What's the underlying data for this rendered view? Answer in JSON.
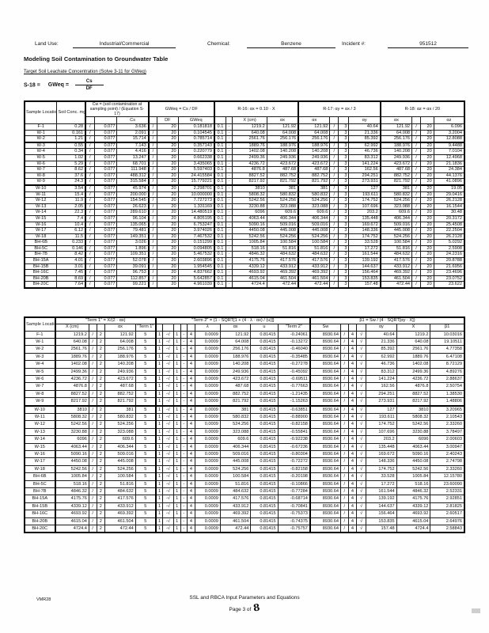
{
  "page": {
    "land_use_label": "Land Use:",
    "land_use_value": "Industrial/Commercial",
    "chemical_label": "Chemical:",
    "chemical_value": "Benzene",
    "incident_label": "Incident #:",
    "incident_value": "951512",
    "title": "Modeling Soil Contamination to Groundwater Table",
    "subtitle": "Target Soil Leachate Concentration (Solve 3-11 for GWeq)",
    "equation_label": "S-18 =",
    "equation_lhs": "GWeq =",
    "equation_numerator": "Cs",
    "equation_denominator": "DF",
    "footer_line1": "SSL and RBCA Input Parameters and Equations",
    "footer_page_prefix": "Page 3 of",
    "footer_page_number": "8",
    "footer_code": "VMR28"
  },
  "table1": {
    "col_sample": "Sample Location",
    "col_conc": "Soil Conc. mg/kg",
    "group_cw": "Cw = (soil contamination at sampling point) / (Equation S-17)",
    "sub_cs": "Cs",
    "group_gw": "GWeq = Cs / DF",
    "sub_df": "DF",
    "sub_gweq": "GWeq",
    "group_r16": "R-16:  αx = 0.10 · X",
    "sub_x": "X (cm)",
    "sub_ax": "αx",
    "group_r17": "R-17:  αy = αx / 3",
    "sub_ay": "αy",
    "group_r18": "R-18:  αz = αx / 20",
    "sub_az": "αz",
    "slash": "/",
    "const_k": "0.077",
    "const_df": "20",
    "const_01": "0.1",
    "const_dot": "·",
    "const_3": "3",
    "const_20": "20",
    "rows": [
      {
        "name": "F-1",
        "conc": "0.28",
        "cs": "3.636",
        "gw": "0.181818",
        "x": "1219.2",
        "ax": "121.92",
        "ay": "40.64",
        "az": "6.096"
      },
      {
        "name": "W-1",
        "conc": "0.161",
        "cs": "2.091",
        "gw": "0.104545",
        "x": "640.08",
        "ax": "64.008",
        "ay": "21.336",
        "az": "3.2004"
      },
      {
        "name": "W-2",
        "conc": "1.21",
        "cs": "15.714",
        "gw": "0.785714",
        "x": "2561.76",
        "ax": "256.176",
        "ay": "85.392",
        "az": "12.8088"
      },
      {
        "name": "W-3",
        "conc": "0.55",
        "cs": "7.143",
        "gw": "0.357143",
        "x": "1889.76",
        "ax": "188.976",
        "ay": "62.992",
        "az": "9.4488"
      },
      {
        "name": "W-4",
        "conc": "0.34",
        "cs": "4.416",
        "gw": "0.220779",
        "x": "1402.08",
        "ax": "140.208",
        "ay": "46.736",
        "az": "7.0104"
      },
      {
        "name": "W-5",
        "conc": "1.02",
        "cs": "13.247",
        "gw": "0.662338",
        "x": "2499.36",
        "ax": "249.936",
        "ay": "83.312",
        "az": "12.4968"
      },
      {
        "name": "W-6",
        "conc": "5.29",
        "cs": "68.701",
        "gw": "3.435065",
        "x": "4236.72",
        "ax": "423.672",
        "ay": "141.224",
        "az": "21.1836"
      },
      {
        "name": "W-7",
        "conc": "8.62",
        "cs": "111.948",
        "gw": "5.597403",
        "x": "4876.8",
        "ax": "487.68",
        "ay": "162.56",
        "az": "24.384"
      },
      {
        "name": "W-8",
        "conc": "37.6",
        "cs": "488.312",
        "gw": "24.415584",
        "x": "8827.52",
        "ax": "882.752",
        "ay": "294.251",
        "az": "44.1376"
      },
      {
        "name": "W-9",
        "conc": "24.3",
        "cs": "315.584",
        "gw": "15.779221",
        "x": "8217.92",
        "ax": "821.792",
        "ay": "273.931",
        "az": "41.0896"
      },
      {
        "name": "W-10",
        "conc": "3.54",
        "cs": "45.974",
        "gw": "2.298701",
        "x": "3810",
        "ax": "381",
        "ay": "127",
        "az": "19.05"
      },
      {
        "name": "W-11",
        "conc": "15.4",
        "cs": "200.000",
        "gw": "10.000000",
        "x": "5808.32",
        "ax": "580.832",
        "ay": "193.611",
        "az": "29.0416"
      },
      {
        "name": "W-12",
        "conc": "11.9",
        "cs": "154.545",
        "gw": "7.727273",
        "x": "5242.56",
        "ax": "524.256",
        "ay": "174.752",
        "az": "26.2128"
      },
      {
        "name": "W-13",
        "conc": "2.05",
        "cs": "26.623",
        "gw": "1.331169",
        "x": "3230.88",
        "ax": "323.088",
        "ay": "107.696",
        "az": "16.1544"
      },
      {
        "name": "W-14",
        "conc": "22.3",
        "cs": "289.610",
        "gw": "14.480519",
        "x": "6096",
        "ax": "609.6",
        "ay": "203.2",
        "az": "30.48"
      },
      {
        "name": "W-15",
        "conc": "7.4",
        "cs": "96.104",
        "gw": "4.805195",
        "x": "4063.44",
        "ax": "406.344",
        "ay": "135.448",
        "az": "20.3172"
      },
      {
        "name": "W-16",
        "conc": "10.4",
        "cs": "135.065",
        "gw": "6.753247",
        "x": "5090.16",
        "ax": "509.016",
        "ay": "169.672",
        "az": "25.4508"
      },
      {
        "name": "W-17",
        "conc": "6.12",
        "cs": "79.481",
        "gw": "3.974026",
        "x": "4450.08",
        "ax": "445.008",
        "ay": "148.336",
        "az": "22.2504"
      },
      {
        "name": "W-18",
        "conc": "11.5",
        "cs": "149.351",
        "gw": "7.467532",
        "x": "5242.56",
        "ax": "524.256",
        "ay": "174.752",
        "az": "26.2128"
      },
      {
        "name": "BH-6B",
        "conc": "0.233",
        "cs": "3.026",
        "gw": "0.151299",
        "x": "1005.84",
        "ax": "100.584",
        "ay": "33.528",
        "az": "5.0292"
      },
      {
        "name": "BH-5C",
        "conc": "0.146",
        "cs": "1.896",
        "gw": "0.094805",
        "x": "518.16",
        "ax": "51.816",
        "ay": "17.272",
        "az": "2.5908"
      },
      {
        "name": "BH-7B",
        "conc": "8.42",
        "cs": "109.351",
        "gw": "5.467532",
        "x": "4846.32",
        "ax": "484.632",
        "ay": "161.544",
        "az": "24.2316"
      },
      {
        "name": "BH-15A",
        "conc": "4.01",
        "cs": "52.078",
        "gw": "2.603896",
        "x": "4175.76",
        "ax": "417.576",
        "ay": "139.192",
        "az": "20.8788"
      },
      {
        "name": "BH-15B",
        "conc": "3.01",
        "cs": "39.091",
        "gw": "1.954545",
        "x": "4339.12",
        "ax": "433.912",
        "ay": "144.637",
        "az": "21.6956"
      },
      {
        "name": "BH-16C",
        "conc": "7.45",
        "cs": "96.753",
        "gw": "4.837662",
        "x": "4693.92",
        "ax": "469.392",
        "ay": "156.464",
        "az": "23.4696"
      },
      {
        "name": "BH-20B",
        "conc": "8.69",
        "cs": "112.857",
        "gw": "5.642857",
        "x": "4615.04",
        "ax": "461.504",
        "ay": "153.835",
        "az": "23.0752"
      },
      {
        "name": "BH-20C",
        "conc": "7.64",
        "cs": "99.221",
        "gw": "4.961039",
        "x": "4724.4",
        "ax": "472.44",
        "ay": "157.48",
        "az": "23.622"
      }
    ]
  },
  "table2": {
    "col_sample": "Sample Location",
    "group_t1": "\"Term 1\" = X/(2 · αx)",
    "sub_x": "X (cm)",
    "sub_ax": "αx",
    "sub_t1": "\"Term 1\"",
    "group_t2": "\"Term 2\" = {1 - SQRT[1 + (4 · λ · αx) / (u)]}",
    "sub_lambda": "λ",
    "sub_u": "u",
    "sub_t2": "\"Term 2\"",
    "group_b1": "β1 = Sw / (4 · SQRT[αy · X])",
    "sub_sw": "Sw",
    "sub_ay": "αy",
    "sub_x2": "X",
    "sub_b1": "β1",
    "slash": "/",
    "const_2": "2",
    "const_4": "4",
    "sqrt_sign": "√",
    "tokens": [
      "1",
      "-√",
      "1",
      "-",
      "4"
    ],
    "term1_value": "5",
    "lambda_value": "0.0009",
    "u_value": "0.81415",
    "sw_value": "8930.64",
    "rows": [
      {
        "name": "F-1",
        "x": "1219.2",
        "ax": "121.92",
        "term2": "-0.24061",
        "ay": "40.64",
        "b1": "10.03016"
      },
      {
        "name": "W-1",
        "x": "640.08",
        "ax": "64.008",
        "term2": "-0.13272",
        "ay": "21.336",
        "b1": "19.10511"
      },
      {
        "name": "W-2",
        "x": "2561.76",
        "ax": "256.176",
        "term2": "-0.46040",
        "ay": "85.392",
        "b1": "4.77358"
      },
      {
        "name": "W-3",
        "x": "1889.76",
        "ax": "188.976",
        "term2": "-0.35485",
        "ay": "62.992",
        "b1": "6.47108"
      },
      {
        "name": "W-4",
        "x": "1402.08",
        "ax": "140.208",
        "term2": "-0.27278",
        "ay": "46.736",
        "b1": "8.72129"
      },
      {
        "name": "W-5",
        "x": "2499.36",
        "ax": "249.936",
        "term2": "-0.45092",
        "ay": "83.312",
        "b1": "4.89276"
      },
      {
        "name": "W-6",
        "x": "4236.72",
        "ax": "423.672",
        "term2": "-0.69511",
        "ay": "141.224",
        "b1": "2.88637"
      },
      {
        "name": "W-7",
        "x": "4876.8",
        "ax": "487.68",
        "term2": "-0.77663",
        "ay": "162.56",
        "b1": "2.50754"
      },
      {
        "name": "W-8",
        "x": "8827.52",
        "ax": "882.752",
        "term2": "-1.21435",
        "ay": "294.251",
        "b1": "1.38530"
      },
      {
        "name": "W-9",
        "x": "8217.92",
        "ax": "821.792",
        "term2": "-1.15263",
        "ay": "273.931",
        "b1": "1.48806"
      },
      {
        "name": "W-10",
        "x": "3810",
        "ax": "381",
        "term2": "-0.63851",
        "ay": "127",
        "b1": "3.20965"
      },
      {
        "name": "W-11",
        "x": "5808.32",
        "ax": "580.832",
        "term2": "-0.88900",
        "ay": "193.611",
        "b1": "2.10543"
      },
      {
        "name": "W-12",
        "x": "5242.56",
        "ax": "524.256",
        "term2": "-0.82158",
        "ay": "174.752",
        "b1": "2.33260"
      },
      {
        "name": "W-13",
        "x": "3230.88",
        "ax": "323.088",
        "term2": "-0.55841",
        "ay": "107.696",
        "b1": "3.78497"
      },
      {
        "name": "W-14",
        "x": "6096",
        "ax": "609.6",
        "term2": "-0.92238",
        "ay": "203.2",
        "b1": "2.00603"
      },
      {
        "name": "W-15",
        "x": "4063.44",
        "ax": "406.344",
        "term2": "-0.67236",
        "ay": "135.448",
        "b1": "3.00947"
      },
      {
        "name": "W-16",
        "x": "5090.16",
        "ax": "509.016",
        "term2": "-0.80304",
        "ay": "169.672",
        "b1": "2.40243"
      },
      {
        "name": "W-17",
        "x": "4450.08",
        "ax": "445.008",
        "term2": "-0.72272",
        "ay": "148.336",
        "b1": "2.74798"
      },
      {
        "name": "W-18",
        "x": "5242.56",
        "ax": "524.256",
        "term2": "-0.82158",
        "ay": "174.752",
        "b1": "2.33260"
      },
      {
        "name": "BH-6B",
        "x": "1005.84",
        "ax": "100.584",
        "term2": "-0.20198",
        "ay": "33.528",
        "b1": "12.15780"
      },
      {
        "name": "BH-5C",
        "x": "518.16",
        "ax": "51.816",
        "term2": "-0.10866",
        "ay": "17.272",
        "b1": "23.60090"
      },
      {
        "name": "BH-7B",
        "x": "4846.32",
        "ax": "484.632",
        "term2": "-0.77284",
        "ay": "161.544",
        "b1": "2.52331"
      },
      {
        "name": "BH-15A",
        "x": "4175.76",
        "ax": "417.576",
        "term2": "-0.68714",
        "ay": "139.192",
        "b1": "2.92851"
      },
      {
        "name": "BH-15B",
        "x": "4339.12",
        "ax": "433.912",
        "term2": "-0.70841",
        "ay": "144.637",
        "b1": "2.81825"
      },
      {
        "name": "BH-16C",
        "x": "4693.92",
        "ax": "469.392",
        "term2": "-0.75373",
        "ay": "156.464",
        "b1": "2.60517"
      },
      {
        "name": "BH-20B",
        "x": "4615.04",
        "ax": "461.504",
        "term2": "-0.74375",
        "ay": "153.835",
        "b1": "2.64976"
      },
      {
        "name": "BH-20C",
        "x": "4724.4",
        "ax": "472.44",
        "term2": "-0.75757",
        "ay": "157.48",
        "b1": "2.58843"
      }
    ]
  }
}
